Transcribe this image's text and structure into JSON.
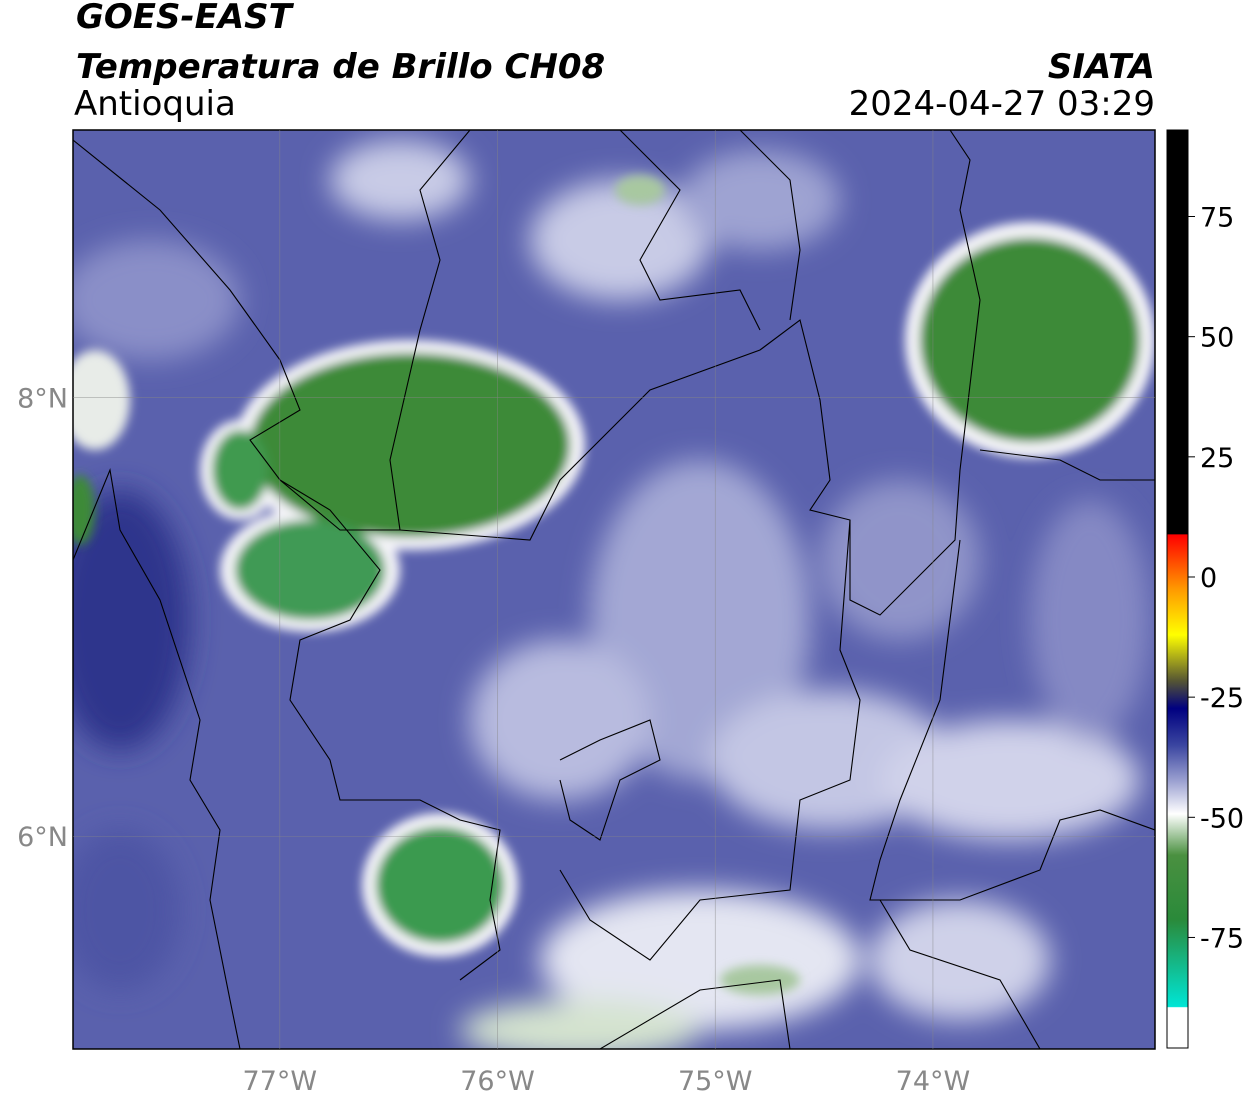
{
  "header": {
    "title": "GOES-EAST",
    "subtitle": "Temperatura de Brillo CH08",
    "region": "Antioquia",
    "source": "SIATA",
    "timestamp": "2024-04-27 03:29"
  },
  "map": {
    "xlim": [
      -77.95,
      -72.98
    ],
    "ylim": [
      5.03,
      9.22
    ],
    "xticks": [
      {
        "value": -77,
        "label": "77°W"
      },
      {
        "value": -76,
        "label": "76°W"
      },
      {
        "value": -75,
        "label": "75°W"
      },
      {
        "value": -74,
        "label": "74°W"
      }
    ],
    "yticks": [
      {
        "value": 8,
        "label": "8°N"
      },
      {
        "value": 6,
        "label": "6°N"
      }
    ],
    "grid": true
  },
  "colorbar": {
    "lim": [
      -98,
      93
    ],
    "ticks": [
      75,
      50,
      25,
      0,
      -25,
      -50,
      -75
    ]
  }
}
